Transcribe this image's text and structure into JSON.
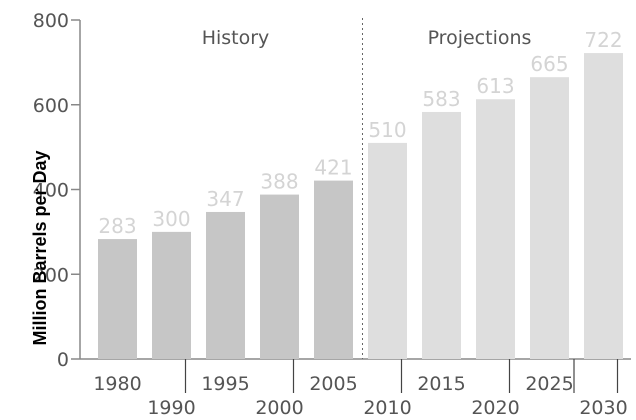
{
  "chart_data": {
    "type": "bar",
    "title": "",
    "ylabel": "Million Barrels per Day",
    "xlabel": "",
    "ylim": [
      0,
      800
    ],
    "yticks": [
      0,
      200,
      400,
      600,
      800
    ],
    "grid": false,
    "sections": [
      {
        "label": "History",
        "categories": [
          "1980",
          "1990",
          "1995",
          "2000",
          "2005"
        ]
      },
      {
        "label": "Projections",
        "categories": [
          "2010",
          "2015",
          "2020",
          "2025",
          "2030"
        ]
      }
    ],
    "categories": [
      "1980",
      "1990",
      "1995",
      "2000",
      "2005",
      "2010",
      "2015",
      "2020",
      "2025",
      "2030"
    ],
    "values": [
      283,
      300,
      347,
      388,
      421,
      510,
      583,
      613,
      665,
      722
    ],
    "value_labels": [
      "283",
      "300",
      "347",
      "388",
      "421",
      "510",
      "583",
      "613",
      "665",
      "722"
    ],
    "colors": {
      "history": "#c6c6c6",
      "projection": "#dedede",
      "label": "#d4d4d4",
      "axis": "#888888"
    }
  }
}
